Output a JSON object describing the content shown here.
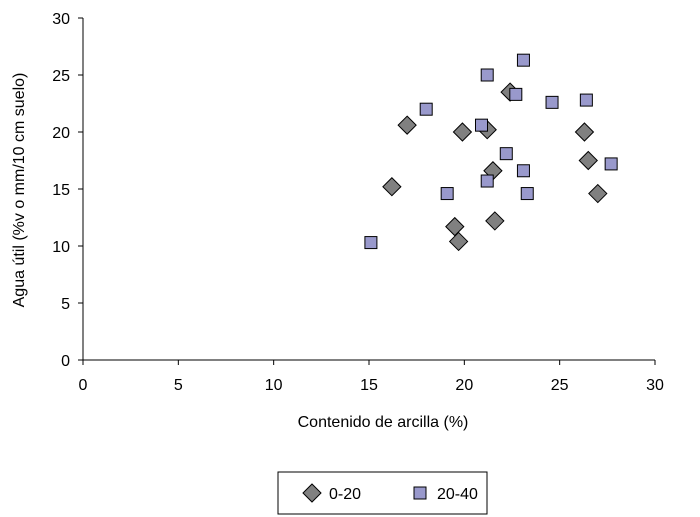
{
  "chart_data": {
    "type": "scatter",
    "title": "",
    "xlabel": "Contenido de arcilla (%)",
    "ylabel": "Agua útil (%v o mm/10 cm suelo)",
    "xlim": [
      0,
      30
    ],
    "ylim": [
      0,
      30
    ],
    "xticks": [
      0,
      5,
      10,
      15,
      20,
      25,
      30
    ],
    "yticks": [
      0,
      5,
      10,
      15,
      20,
      25,
      30
    ],
    "grid": false,
    "legend_position": "bottom-center",
    "series": [
      {
        "name": "0-20",
        "marker": "diamond",
        "color": "#808080",
        "points": [
          [
            16.2,
            15.2
          ],
          [
            17.0,
            20.6
          ],
          [
            19.5,
            11.7
          ],
          [
            19.7,
            10.4
          ],
          [
            19.9,
            20.0
          ],
          [
            21.2,
            20.2
          ],
          [
            21.5,
            16.6
          ],
          [
            21.6,
            12.2
          ],
          [
            22.4,
            23.5
          ],
          [
            26.3,
            20.0
          ],
          [
            26.5,
            17.5
          ],
          [
            27.0,
            14.6
          ]
        ]
      },
      {
        "name": "20-40",
        "marker": "square",
        "color": "#9999CC",
        "points": [
          [
            15.1,
            10.3
          ],
          [
            18.0,
            22.0
          ],
          [
            19.1,
            14.6
          ],
          [
            20.9,
            20.6
          ],
          [
            21.2,
            25.0
          ],
          [
            21.2,
            15.7
          ],
          [
            22.2,
            18.1
          ],
          [
            22.7,
            23.3
          ],
          [
            23.1,
            26.3
          ],
          [
            23.1,
            16.6
          ],
          [
            23.3,
            14.6
          ],
          [
            24.6,
            22.6
          ],
          [
            26.4,
            22.8
          ],
          [
            27.7,
            17.2
          ]
        ]
      }
    ]
  }
}
